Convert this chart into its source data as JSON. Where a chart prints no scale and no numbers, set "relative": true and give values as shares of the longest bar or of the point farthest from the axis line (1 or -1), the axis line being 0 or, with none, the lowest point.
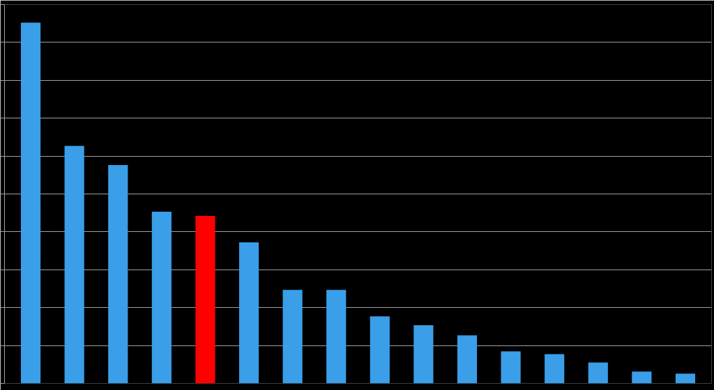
{
  "chart_data": {
    "type": "bar",
    "relative": true,
    "grid": "y",
    "categories": [
      null,
      null,
      null,
      null,
      null,
      null,
      null,
      null,
      null,
      null,
      null,
      null,
      null,
      null,
      null,
      null
    ],
    "values": [
      1,
      0.658,
      0.605,
      0.476,
      0.464,
      0.391,
      0.259,
      0.259,
      0.186,
      0.161,
      0.133,
      0.089,
      0.081,
      0.058,
      0.033,
      0.027
    ],
    "colors": [
      "#3a9ee8",
      "#3a9ee8",
      "#3a9ee8",
      "#3a9ee8",
      "#ff0000",
      "#3a9ee8",
      "#3a9ee8",
      "#3a9ee8",
      "#3a9ee8",
      "#3a9ee8",
      "#3a9ee8",
      "#3a9ee8",
      "#3a9ee8",
      "#3a9ee8",
      "#3a9ee8",
      "#3a9ee8"
    ]
  }
}
